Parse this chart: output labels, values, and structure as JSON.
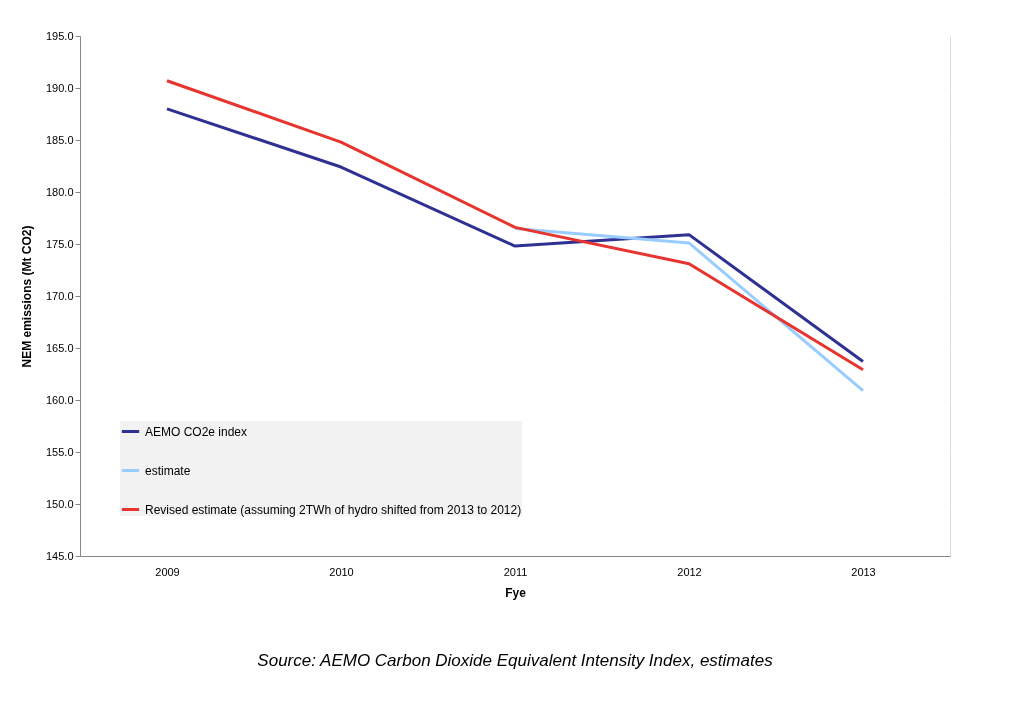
{
  "chart_data": {
    "type": "line",
    "xlabel": "Fye",
    "ylabel": "NEM emissions (Mt CO2)",
    "categories": [
      "2009",
      "2010",
      "2011",
      "2012",
      "2013"
    ],
    "series": [
      {
        "name": "AEMO CO2e index",
        "color": "#2e3192",
        "values": [
          188.0,
          182.4,
          174.8,
          175.9,
          163.7
        ]
      },
      {
        "name": "estimate",
        "color": "#99ccff",
        "values": [
          null,
          null,
          176.5,
          175.1,
          160.9
        ]
      },
      {
        "name": "Revised estimate (assuming 2TWh of hydro shifted from 2013 to 2012)",
        "color": "#e8342e",
        "values": [
          190.7,
          184.8,
          176.6,
          173.1,
          162.9
        ]
      }
    ],
    "ylim": [
      145,
      195
    ],
    "yticks": [
      {
        "value": 145,
        "label": "145.0"
      },
      {
        "value": 150,
        "label": "150.0"
      },
      {
        "value": 155,
        "label": "155.0"
      },
      {
        "value": 160,
        "label": "160.0"
      },
      {
        "value": 165,
        "label": "165.0"
      },
      {
        "value": 170,
        "label": "170.0"
      },
      {
        "value": 175,
        "label": "175.0"
      },
      {
        "value": 180,
        "label": "180.0"
      },
      {
        "value": 185,
        "label": "185.0"
      },
      {
        "value": 190,
        "label": "190.0"
      },
      {
        "value": 195,
        "label": "195.0"
      }
    ],
    "grid": "y",
    "legend": "bottom left",
    "marker": "none",
    "line_style": "solid",
    "annotations": [
      "Source: AEMO Carbon Dioxide Equivalent Intensity Index, estimates"
    ]
  }
}
